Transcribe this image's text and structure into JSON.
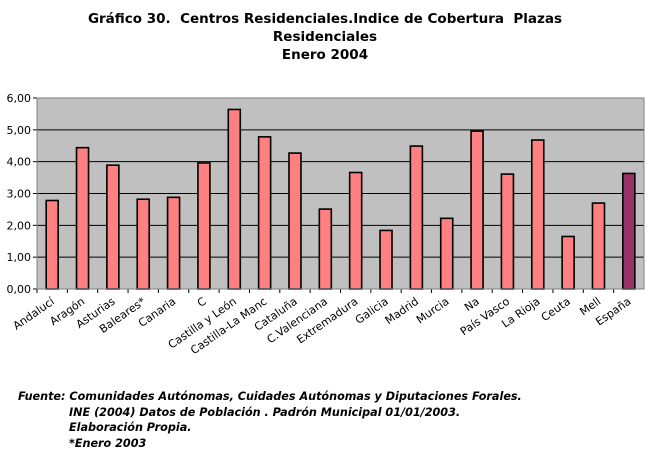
{
  "title_lines": [
    "Gráfico 30.  Centros Residenciales.Indice de Cobertura  Plazas",
    "Residenciales",
    "Enero 2004"
  ],
  "colors": {
    "plot_bg": "#c0c0c0",
    "bar": "#ff8080",
    "bar_highlight": "#993366",
    "bar_edge": "#000000"
  },
  "chart_data": {
    "type": "bar",
    "title": "Gráfico 30.  Centros Residenciales.Indice de Cobertura  Plazas Residenciales Enero 2004",
    "categories": [
      "Andalucía",
      "Aragón",
      "Asturias",
      "Baleares*",
      "Canarias",
      "C",
      "Castilla y León",
      "Castilla-La Mancha",
      "Cataluña",
      "C.Valenciana",
      "Extremadura",
      "Galicia",
      "Madrid",
      "Murcia",
      "Navarra",
      "País Vasco",
      "La Rioja",
      "Ceuta",
      "Melilla",
      "España"
    ],
    "category_labels": [
      "Andalucí",
      "Aragón",
      "Asturias",
      "Baleares*",
      "Canaria",
      "C",
      "Castilla y León",
      "Castilla-La Manc",
      "Cataluña",
      "C.Valenciana",
      "Extremadura",
      "Galicia",
      "Madrid",
      "Murcia",
      "Na",
      "País Vasco",
      "La Rioja",
      "Ceuta",
      "Mell",
      "España"
    ],
    "values": [
      2.78,
      4.44,
      3.89,
      2.82,
      2.88,
      3.96,
      5.64,
      4.78,
      4.27,
      2.51,
      3.66,
      1.84,
      4.49,
      2.22,
      4.96,
      3.61,
      4.68,
      1.65,
      2.7,
      3.63
    ],
    "highlight_index": 19,
    "ylim": [
      0,
      6
    ],
    "yticks": [
      "0,00",
      "1,00",
      "2,00",
      "3,00",
      "4,00",
      "5,00",
      "6,00"
    ],
    "grid": true,
    "legend": "none"
  },
  "source_lines": [
    "Fuente: Comunidades Autónomas, Cuidades Autónomas y Diputaciones Forales.",
    "INE (2004) Datos de Población . Padrón Municipal 01/01/2003.",
    "Elaboración Propia.",
    "*Enero 2003"
  ]
}
